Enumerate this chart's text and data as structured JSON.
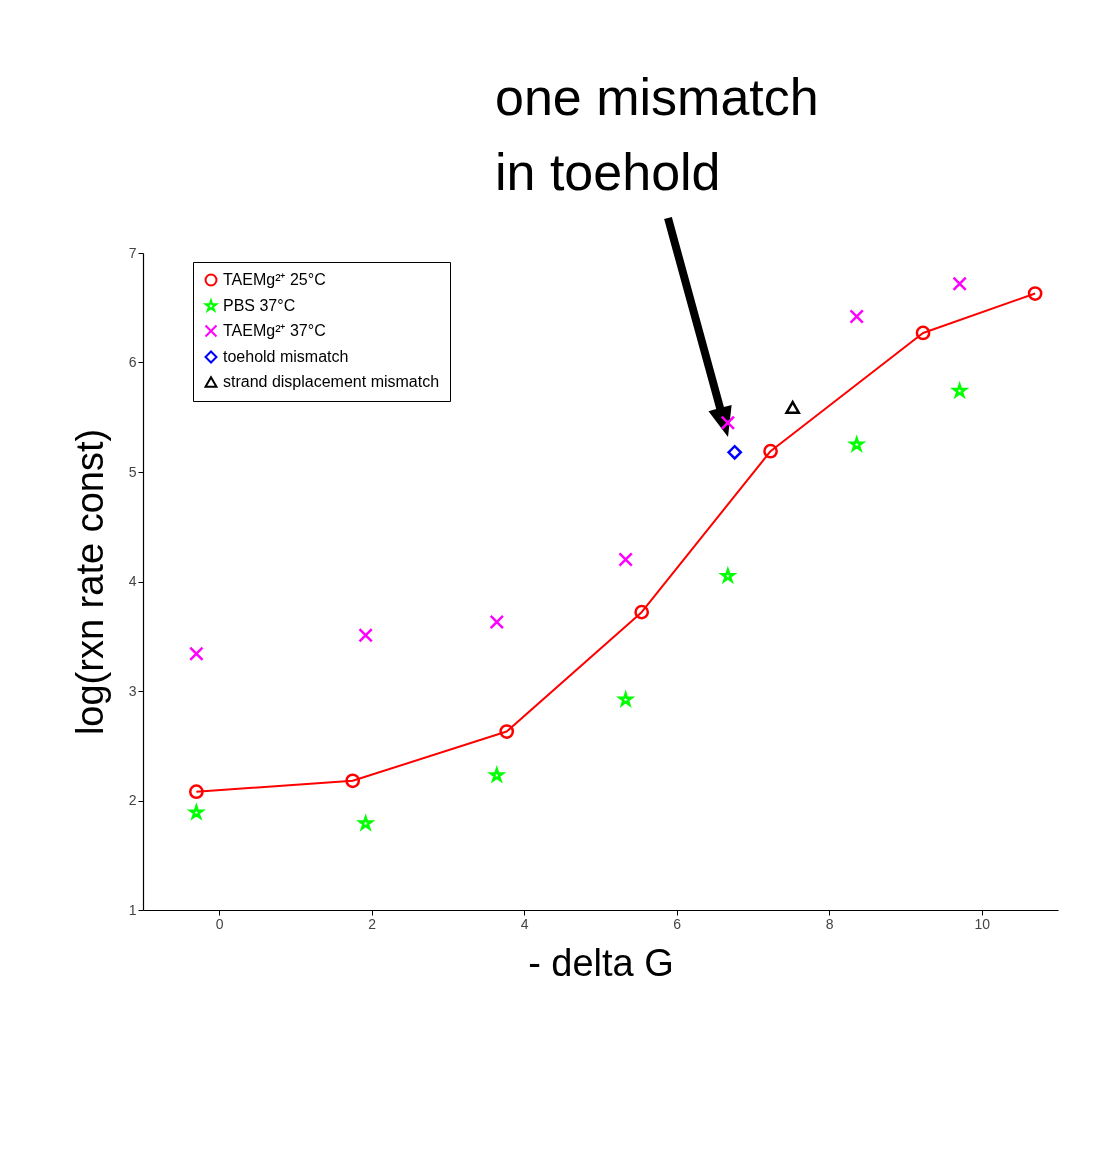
{
  "chart_data": {
    "type": "scatter",
    "xlabel": "- delta G",
    "ylabel": "log(rxn rate const)",
    "xlim": [
      -1,
      11
    ],
    "xticks": [
      {
        "value": 0,
        "label": "0"
      },
      {
        "value": 2,
        "label": "2"
      },
      {
        "value": 4,
        "label": "4"
      },
      {
        "value": 6,
        "label": "6"
      },
      {
        "value": 8,
        "label": "8"
      },
      {
        "value": 10,
        "label": "10"
      }
    ],
    "ylim": [
      1,
      7
    ],
    "yticks": [
      {
        "value": 1,
        "label": "1"
      },
      {
        "value": 2,
        "label": "2"
      },
      {
        "value": 3,
        "label": "3"
      },
      {
        "value": 4,
        "label": "4"
      },
      {
        "value": 5,
        "label": "5"
      },
      {
        "value": 6,
        "label": "6"
      },
      {
        "value": 7,
        "label": "7"
      }
    ],
    "grid": false,
    "legend": "top left",
    "annotations": [
      "one mismatch\nin toehold"
    ],
    "series": [
      {
        "name": "TAEMg²⁺ 25°C",
        "type": "line",
        "marker": "circle",
        "color": "#ff0000",
        "x": [
          -0.3,
          1.75,
          3.77,
          5.54,
          7.23,
          9.23,
          10.7
        ],
        "values": [
          2.08,
          2.18,
          2.63,
          3.72,
          5.19,
          6.27,
          6.63
        ]
      },
      {
        "name": "PBS 37°C",
        "marker": "star",
        "color": "#00ff00",
        "x": [
          -0.3,
          1.92,
          3.64,
          5.33,
          6.67,
          8.36,
          9.71
        ],
        "values": [
          1.89,
          1.79,
          2.23,
          2.92,
          4.05,
          5.25,
          5.74
        ]
      },
      {
        "name": "TAEMg²⁺ 37°C",
        "marker": "cross",
        "color": "#ff00ff",
        "x": [
          -0.3,
          1.92,
          3.64,
          5.33,
          6.67,
          8.36,
          9.71
        ],
        "values": [
          3.34,
          3.51,
          3.63,
          4.2,
          5.45,
          6.42,
          6.72
        ]
      },
      {
        "name": "toehold mismatch",
        "marker": "diamond",
        "color": "#0000ff",
        "x": [
          6.76
        ],
        "values": [
          5.18
        ]
      },
      {
        "name": "strand displacement mismatch",
        "marker": "triangle",
        "color": "#000000",
        "x": [
          7.52
        ],
        "values": [
          5.59
        ]
      }
    ]
  }
}
